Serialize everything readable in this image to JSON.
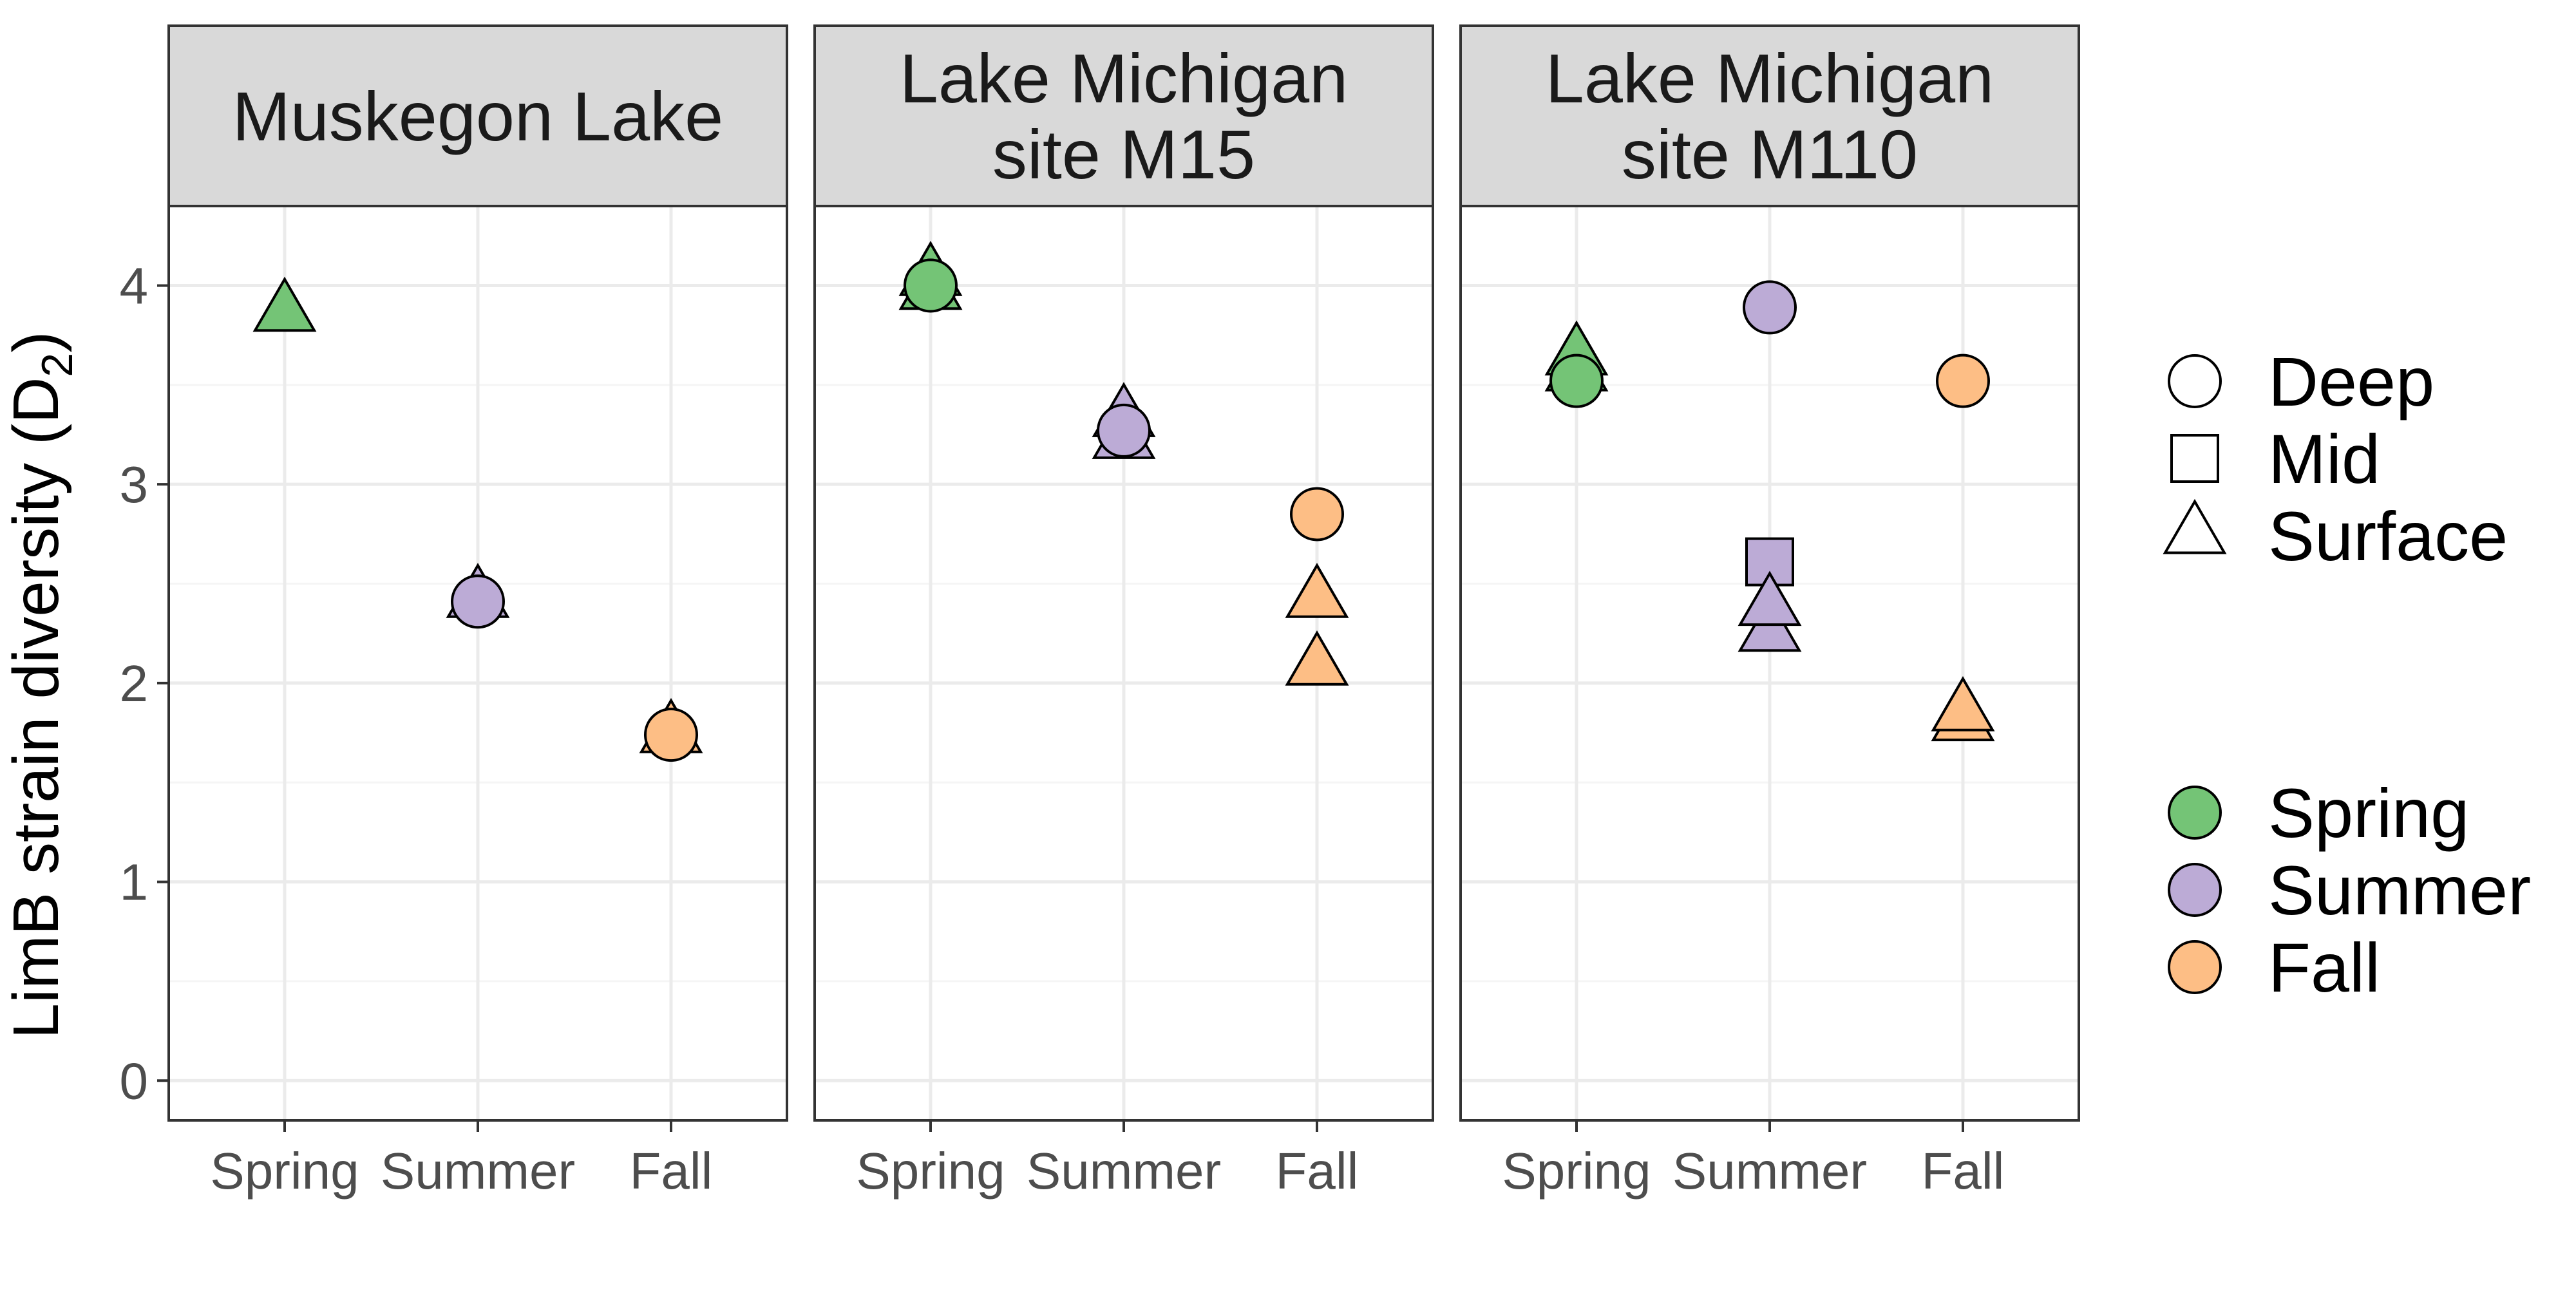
{
  "chart_data": {
    "type": "scatter",
    "ylabel": {
      "main": "LimB strain diversity (D",
      "sub": "2",
      "close": ")"
    },
    "ylim": [
      -0.2,
      4.4
    ],
    "y_ticks": [
      0,
      1,
      2,
      3,
      4
    ],
    "categories": [
      "Spring",
      "Summer",
      "Fall"
    ],
    "grid": true,
    "legend_position": "right",
    "season_colors": {
      "Spring": "#74c476",
      "Summer": "#bcabd6",
      "Fall": "#fdbe85"
    },
    "panel_colors": {
      "strip_fill": "#d9d9d9",
      "grid_major": "#ebebeb",
      "grid_minor": "#f5f5f5",
      "border": "#333333"
    },
    "panels": [
      {
        "title_lines": [
          "Muskegon Lake"
        ],
        "points": [
          {
            "season": "Spring",
            "depth": "Surface",
            "y": 3.86
          },
          {
            "season": "Summer",
            "depth": "Surface",
            "y": 2.42
          },
          {
            "season": "Summer",
            "depth": "Deep",
            "y": 2.41
          },
          {
            "season": "Fall",
            "depth": "Surface",
            "y": 1.74
          },
          {
            "season": "Fall",
            "depth": "Deep",
            "y": 1.74
          }
        ]
      },
      {
        "title_lines": [
          "Lake Michigan",
          "site M15"
        ],
        "points": [
          {
            "season": "Spring",
            "depth": "Surface",
            "y": 3.97
          },
          {
            "season": "Spring",
            "depth": "Surface",
            "y": 4.04
          },
          {
            "season": "Spring",
            "depth": "Deep",
            "y": 4.0
          },
          {
            "season": "Summer",
            "depth": "Surface",
            "y": 3.22
          },
          {
            "season": "Summer",
            "depth": "Surface",
            "y": 3.33
          },
          {
            "season": "Summer",
            "depth": "Deep",
            "y": 3.27
          },
          {
            "season": "Fall",
            "depth": "Deep",
            "y": 2.85
          },
          {
            "season": "Fall",
            "depth": "Surface",
            "y": 2.42
          },
          {
            "season": "Fall",
            "depth": "Surface",
            "y": 2.08
          }
        ]
      },
      {
        "title_lines": [
          "Lake Michigan",
          "site M110"
        ],
        "points": [
          {
            "season": "Spring",
            "depth": "Surface",
            "y": 3.56
          },
          {
            "season": "Spring",
            "depth": "Surface",
            "y": 3.64
          },
          {
            "season": "Spring",
            "depth": "Deep",
            "y": 3.52
          },
          {
            "season": "Summer",
            "depth": "Deep",
            "y": 3.89
          },
          {
            "season": "Summer",
            "depth": "Mid",
            "y": 2.61
          },
          {
            "season": "Summer",
            "depth": "Surface",
            "y": 2.25
          },
          {
            "season": "Summer",
            "depth": "Surface",
            "y": 2.38
          },
          {
            "season": "Fall",
            "depth": "Deep",
            "y": 3.52
          },
          {
            "season": "Fall",
            "depth": "Surface",
            "y": 1.8
          },
          {
            "season": "Fall",
            "depth": "Surface",
            "y": 1.85
          }
        ]
      }
    ],
    "legend_shape": {
      "items": [
        {
          "label": "Deep",
          "shape": "circle"
        },
        {
          "label": "Mid",
          "shape": "square"
        },
        {
          "label": "Surface",
          "shape": "triangle"
        }
      ]
    },
    "legend_color": {
      "items": [
        {
          "label": "Spring",
          "color": "#74c476"
        },
        {
          "label": "Summer",
          "color": "#bcabd6"
        },
        {
          "label": "Fall",
          "color": "#fdbe85"
        }
      ]
    }
  }
}
